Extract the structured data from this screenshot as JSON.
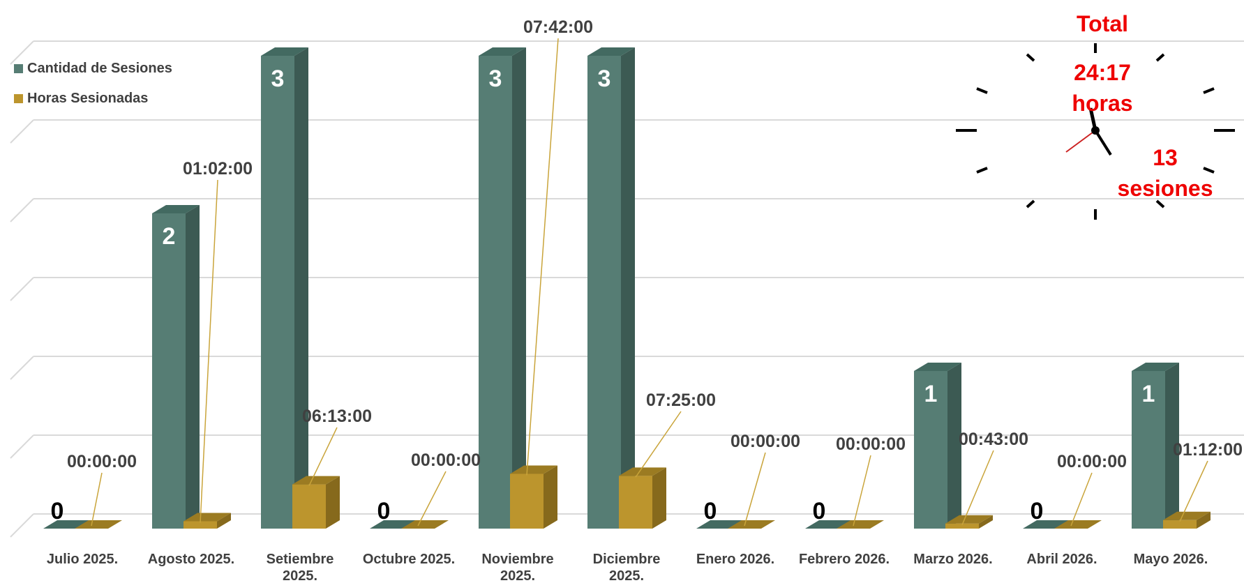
{
  "colors": {
    "sessions_front": "#567d74",
    "sessions_side": "#3c5a53",
    "sessions_top": "#436a61",
    "hours_front": "#bc952d",
    "hours_side": "#86691c",
    "hours_top": "#9b7b22",
    "grid": "#d9d9d9",
    "total_text": "#ee0000"
  },
  "legend": {
    "sessions_label": "Cantidad de Sesiones",
    "hours_label": "Horas Sesionadas"
  },
  "total": {
    "title": "Total",
    "hours_value": "24:17",
    "hours_unit": "horas",
    "sessions_value": "13",
    "sessions_unit": "sesiones"
  },
  "chart_data": {
    "type": "bar",
    "categories": [
      [
        "Julio 2025."
      ],
      [
        "Agosto 2025."
      ],
      [
        "Setiembre",
        "2025."
      ],
      [
        "Octubre 2025."
      ],
      [
        "Noviembre",
        "2025."
      ],
      [
        "Diciembre",
        "2025."
      ],
      [
        "Enero 2026."
      ],
      [
        "Febrero 2026."
      ],
      [
        "Marzo 2026."
      ],
      [
        "Abril 2026."
      ],
      [
        "Mayo 2026."
      ]
    ],
    "series": [
      {
        "name": "Cantidad de Sesiones",
        "values": [
          0,
          2,
          3,
          0,
          3,
          3,
          0,
          0,
          1,
          0,
          1
        ],
        "labels": [
          "0",
          "2",
          "3",
          "0",
          "3",
          "3",
          "0",
          "0",
          "1",
          "0",
          "1"
        ]
      },
      {
        "name": "Horas Sesionadas",
        "values_hours": [
          0,
          1.0333,
          6.2167,
          0,
          7.7,
          7.4167,
          0,
          0,
          0.7167,
          0,
          1.2
        ],
        "labels": [
          "00:00:00",
          "01:02:00",
          "06:13:00",
          "00:00:00",
          "07:42:00",
          "07:25:00",
          "00:00:00",
          "00:00:00",
          "00:43:00",
          "00:00:00",
          "01:12:00"
        ]
      }
    ],
    "ylim": [
      0,
      3
    ],
    "grid": true,
    "legend_position": "top-left"
  }
}
